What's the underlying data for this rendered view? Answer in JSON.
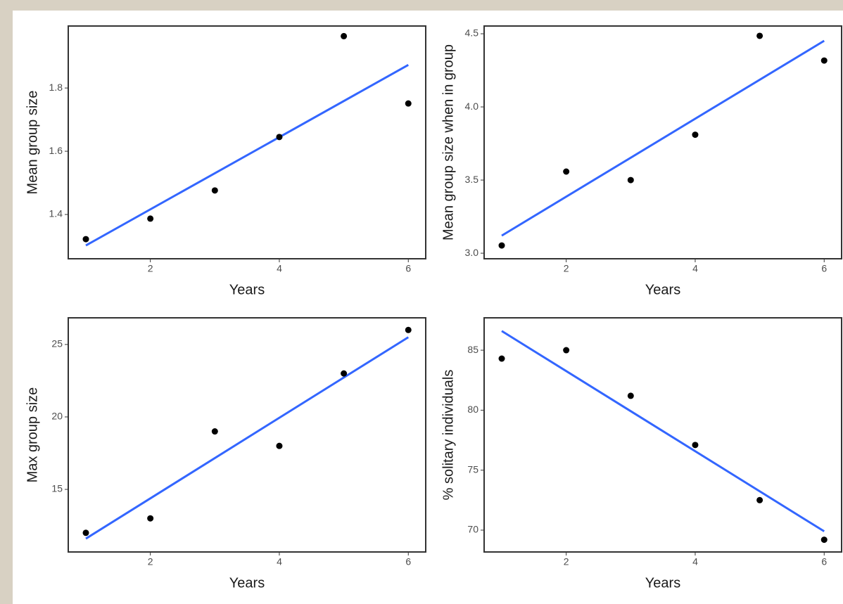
{
  "chart_data": [
    {
      "type": "scatter",
      "xlabel": "Years",
      "ylabel": "Mean group size",
      "x": [
        1,
        2,
        3,
        4,
        5,
        6
      ],
      "values": [
        1.322,
        1.387,
        1.476,
        1.645,
        1.964,
        1.751
      ],
      "color": "#000000",
      "fit": {
        "x": [
          1,
          6
        ],
        "values": [
          1.302,
          1.873
        ],
        "color": "#3366ff"
      },
      "xlim": [
        0.727,
        6.27
      ],
      "xticks": [
        2,
        4,
        6
      ],
      "ylim": [
        1.26,
        1.996
      ],
      "yticks": [
        1.4,
        1.6,
        1.8
      ]
    },
    {
      "type": "scatter",
      "xlabel": "Years",
      "ylabel": "Mean group size when in group",
      "x": [
        1,
        2,
        3,
        4,
        5,
        6
      ],
      "values": [
        3.053,
        3.558,
        3.5,
        3.81,
        4.486,
        4.317
      ],
      "color": "#000000",
      "fit": {
        "x": [
          1,
          6
        ],
        "values": [
          3.12,
          4.452
        ],
        "color": "#3366ff"
      },
      "xlim": [
        0.727,
        6.27
      ],
      "xticks": [
        2,
        4,
        6
      ],
      "ylim": [
        2.962,
        4.553
      ],
      "yticks": [
        {
          "value": 3.0,
          "label": "3.0"
        },
        3.5,
        {
          "value": 4.0,
          "label": "4.0"
        },
        4.5
      ]
    },
    {
      "type": "scatter",
      "xlabel": "Years",
      "ylabel": "Max group size",
      "x": [
        1,
        2,
        3,
        4,
        5,
        6
      ],
      "values": [
        12,
        13,
        19,
        18,
        23,
        26
      ],
      "color": "#000000",
      "fit": {
        "x": [
          1,
          6
        ],
        "values": [
          11.6,
          25.5
        ],
        "color": "#3366ff"
      },
      "xlim": [
        0.727,
        6.27
      ],
      "xticks": [
        2,
        4,
        6
      ],
      "ylim": [
        10.68,
        26.84
      ],
      "yticks": [
        15,
        20,
        25
      ]
    },
    {
      "type": "scatter",
      "xlabel": "Years",
      "ylabel": "% solitary individuals",
      "x": [
        1,
        2,
        3,
        4,
        5,
        6
      ],
      "values": [
        84.3,
        85.0,
        81.2,
        77.1,
        72.5,
        69.2
      ],
      "color": "#000000",
      "fit": {
        "x": [
          1,
          6
        ],
        "values": [
          86.6,
          69.9
        ],
        "color": "#3366ff"
      },
      "xlim": [
        0.727,
        6.27
      ],
      "xticks": [
        2,
        4,
        6
      ],
      "ylim": [
        68.18,
        87.7
      ],
      "yticks": [
        70,
        75,
        80,
        85
      ]
    }
  ]
}
